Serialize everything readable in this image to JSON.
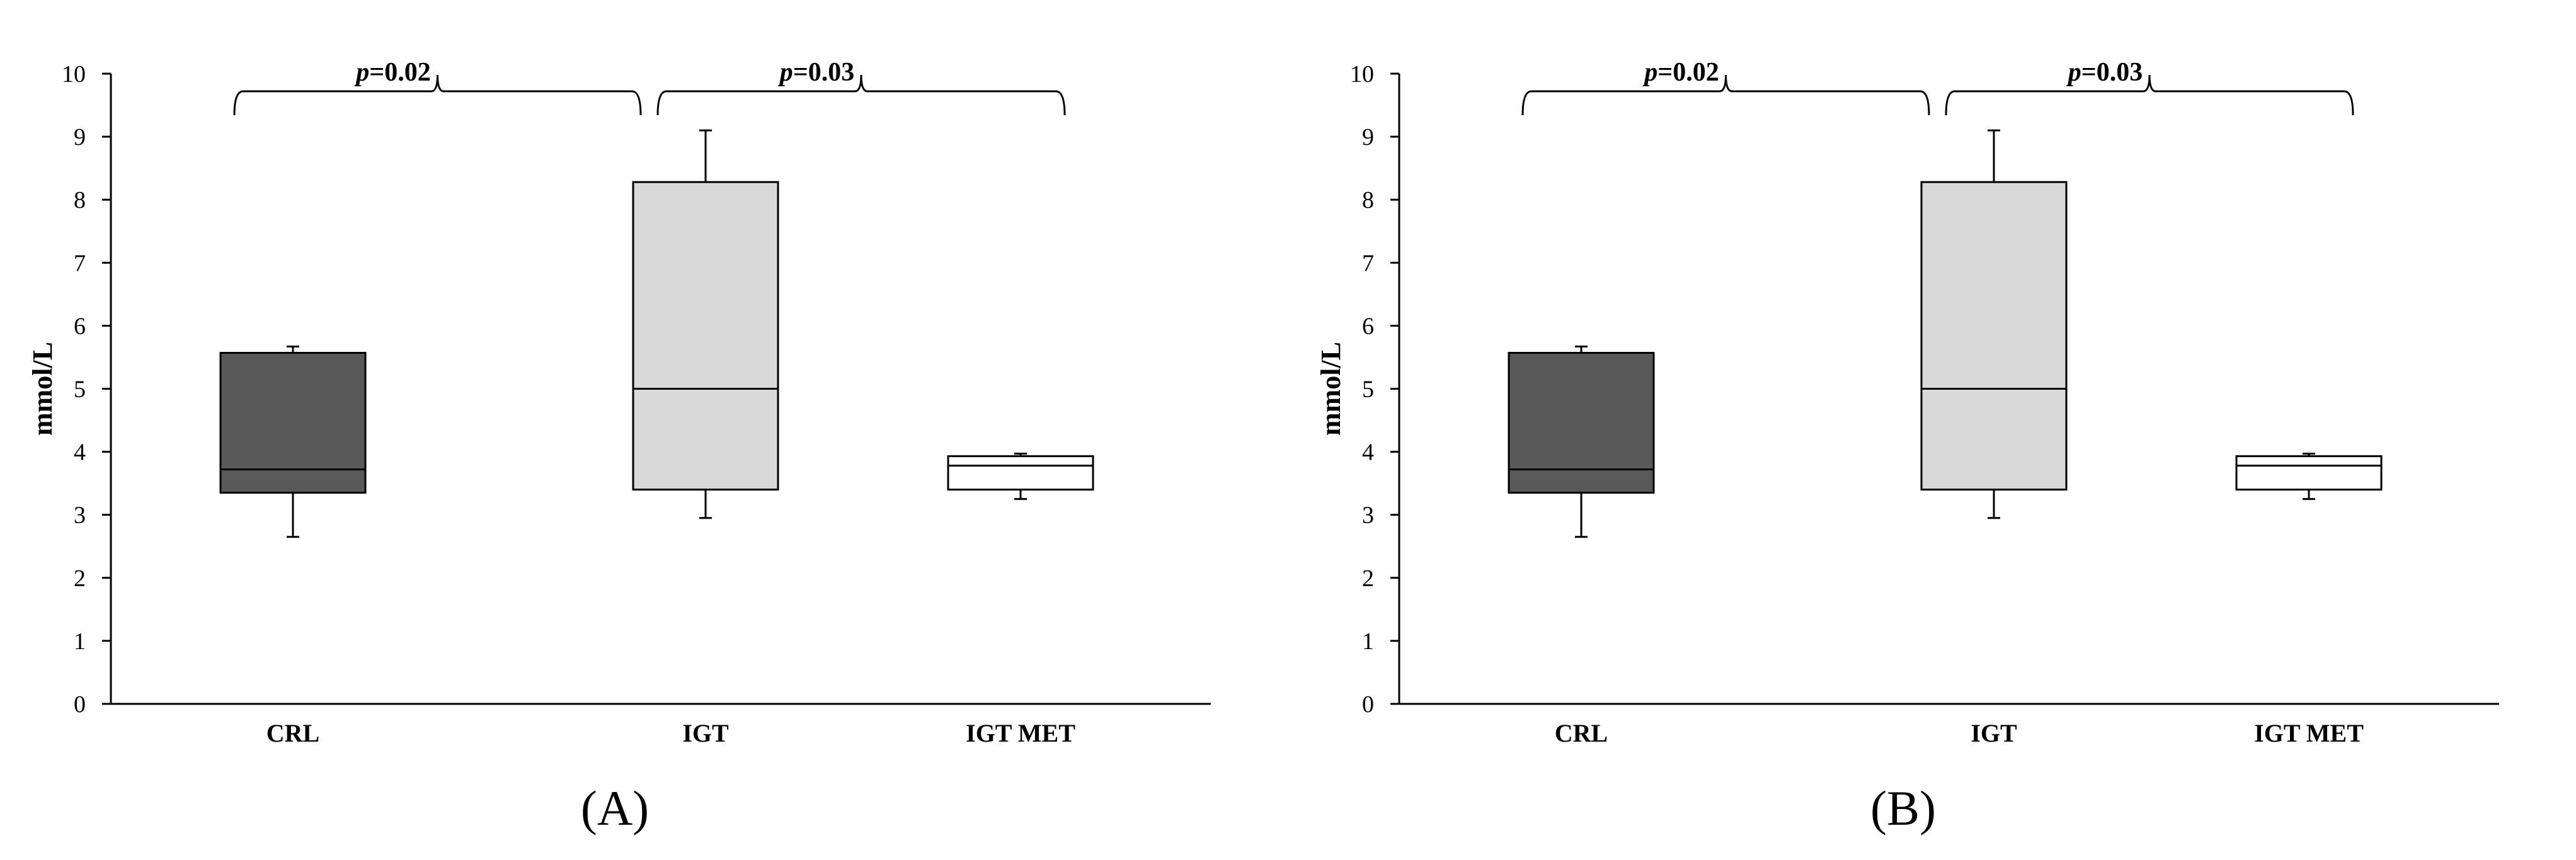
{
  "chart_data": [
    {
      "type": "box",
      "panel_label": "(A)",
      "ylabel": "mmol/L",
      "ylim": [
        0,
        10
      ],
      "yticks": [
        "0",
        "1",
        "2",
        "3",
        "4",
        "5",
        "6",
        "7",
        "8",
        "9",
        "10"
      ],
      "categories": [
        "CRL",
        "IGT",
        "IGT MET"
      ],
      "boxes": [
        {
          "category": "CRL",
          "whisker_low": 2.65,
          "q1": 3.35,
          "median": 3.72,
          "q3": 5.57,
          "whisker_high": 5.67,
          "fill": "#595959"
        },
        {
          "category": "IGT",
          "whisker_low": 2.95,
          "q1": 3.4,
          "median": 5.0,
          "q3": 8.28,
          "whisker_high": 9.1,
          "fill": "#d9d9d9"
        },
        {
          "category": "IGT MET",
          "whisker_low": 3.25,
          "q1": 3.4,
          "median": 3.78,
          "q3": 3.93,
          "whisker_high": 3.97,
          "fill": "#ffffff"
        }
      ],
      "annotations": [
        {
          "italic": "p",
          "value": "=0.02",
          "from": "CRL",
          "to": "IGT"
        },
        {
          "italic": "p",
          "value": "=0.03",
          "from": "IGT",
          "to": "IGT MET"
        }
      ],
      "grid": false
    },
    {
      "type": "box",
      "panel_label": "(B)",
      "ylabel": "mmol/L",
      "ylim": [
        0,
        10
      ],
      "yticks": [
        "0",
        "1",
        "2",
        "3",
        "4",
        "5",
        "6",
        "7",
        "8",
        "9",
        "10"
      ],
      "categories": [
        "CRL",
        "IGT",
        "IGT MET"
      ],
      "boxes": [
        {
          "category": "CRL",
          "whisker_low": 2.65,
          "q1": 3.35,
          "median": 3.72,
          "q3": 5.57,
          "whisker_high": 5.67,
          "fill": "#595959"
        },
        {
          "category": "IGT",
          "whisker_low": 2.95,
          "q1": 3.4,
          "median": 5.0,
          "q3": 8.28,
          "whisker_high": 9.1,
          "fill": "#d9d9d9"
        },
        {
          "category": "IGT MET",
          "whisker_low": 3.25,
          "q1": 3.4,
          "median": 3.78,
          "q3": 3.93,
          "whisker_high": 3.97,
          "fill": "#ffffff"
        }
      ],
      "annotations": [
        {
          "italic": "p",
          "value": "=0.02",
          "from": "CRL",
          "to": "IGT"
        },
        {
          "italic": "p",
          "value": "=0.03",
          "from": "IGT",
          "to": "IGT MET"
        }
      ],
      "grid": false
    }
  ]
}
